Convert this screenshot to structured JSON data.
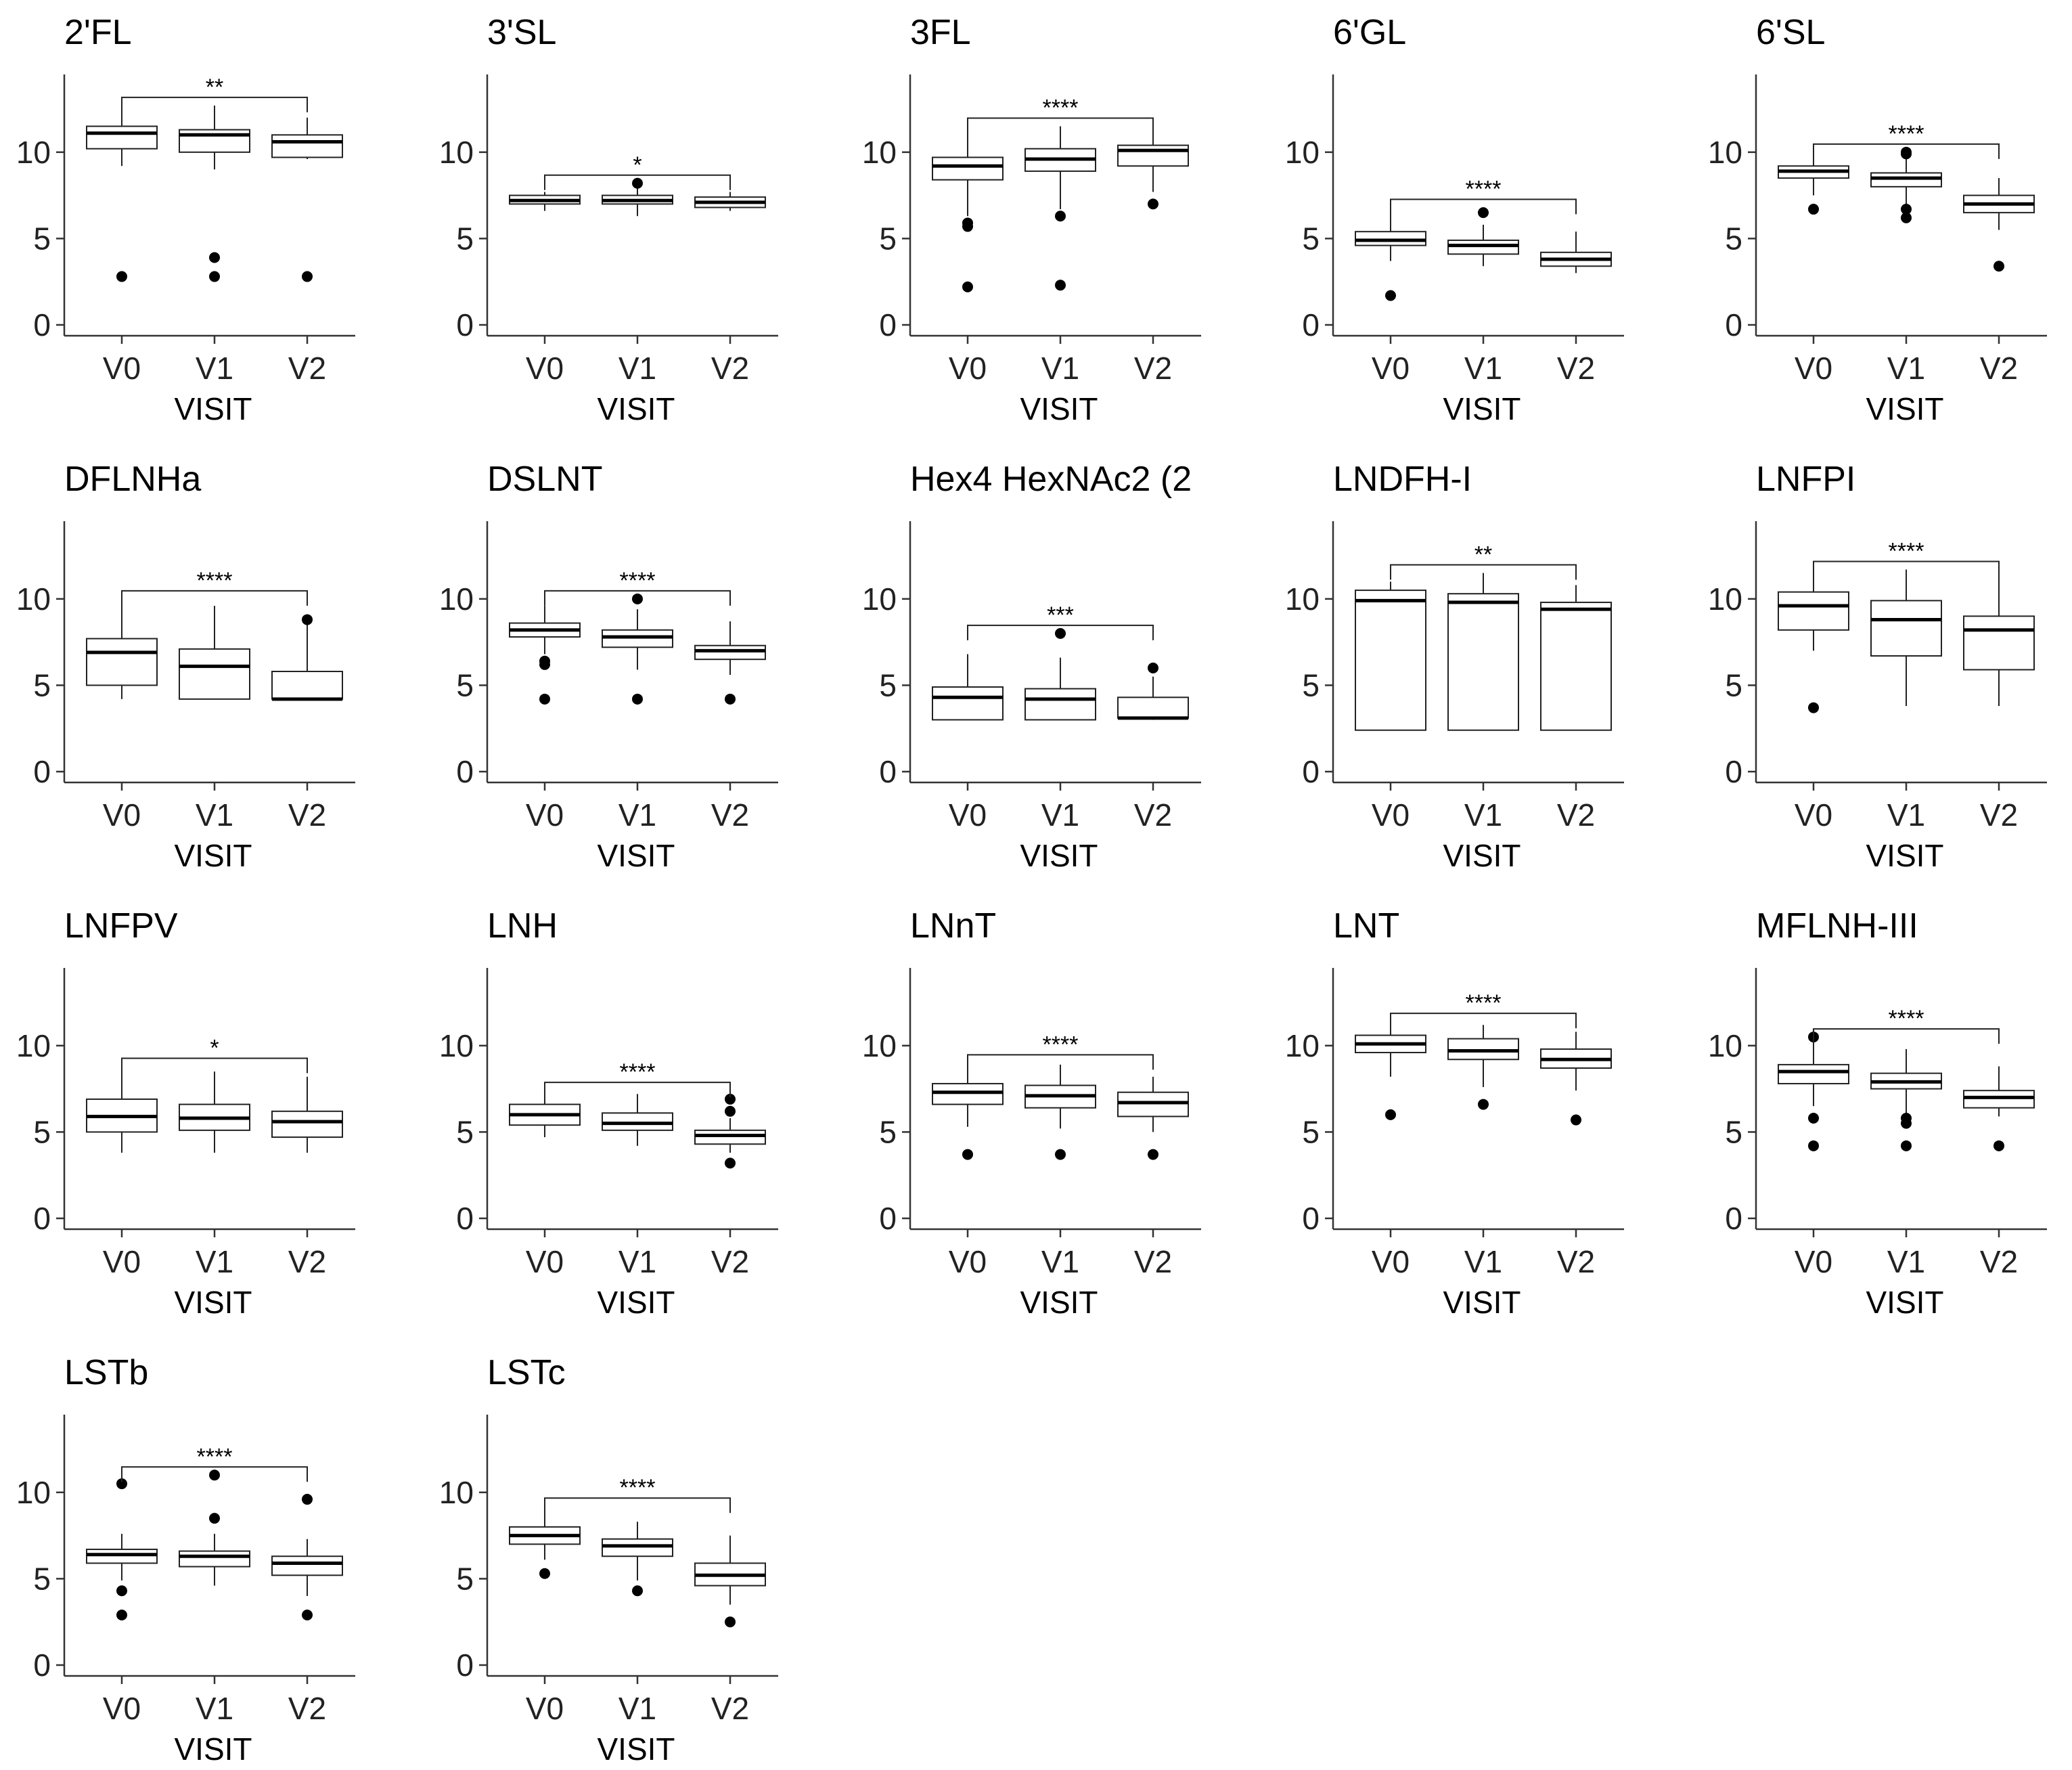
{
  "chart_data": {
    "type": "boxplot",
    "xlabel": "VISIT",
    "categories": [
      "V0",
      "V1",
      "V2"
    ],
    "ylim": [
      0,
      14.5
    ],
    "yticks": [
      0,
      5,
      10
    ],
    "grid": false,
    "legend": "none",
    "panels": [
      {
        "title": "2'FL",
        "sig": "**",
        "boxes": [
          {
            "min": 9.2,
            "q1": 10.2,
            "med": 11.1,
            "q3": 11.5,
            "max": 12.5,
            "outliers": [
              2.8
            ]
          },
          {
            "min": 9.0,
            "q1": 10.0,
            "med": 11.0,
            "q3": 11.3,
            "max": 12.7,
            "outliers": [
              2.8,
              3.9
            ]
          },
          {
            "min": 9.6,
            "q1": 9.7,
            "med": 10.6,
            "q3": 11.0,
            "max": 12.0,
            "outliers": [
              2.8
            ]
          }
        ]
      },
      {
        "title": "3'SL",
        "sig": "*",
        "boxes": [
          {
            "min": 6.6,
            "q1": 7.0,
            "med": 7.2,
            "q3": 7.5,
            "max": 7.7,
            "outliers": []
          },
          {
            "min": 6.3,
            "q1": 7.0,
            "med": 7.2,
            "q3": 7.5,
            "max": 8.0,
            "outliers": [
              8.2
            ]
          },
          {
            "min": 6.6,
            "q1": 6.8,
            "med": 7.1,
            "q3": 7.4,
            "max": 7.7,
            "outliers": []
          }
        ]
      },
      {
        "title": "3FL",
        "sig": "****",
        "boxes": [
          {
            "min": 6.3,
            "q1": 8.4,
            "med": 9.2,
            "q3": 9.7,
            "max": 11.2,
            "outliers": [
              2.2,
              5.7,
              5.9
            ]
          },
          {
            "min": 6.7,
            "q1": 8.9,
            "med": 9.6,
            "q3": 10.2,
            "max": 11.5,
            "outliers": [
              2.3,
              6.3
            ]
          },
          {
            "min": 7.7,
            "q1": 9.2,
            "med": 10.1,
            "q3": 10.4,
            "max": 11.4,
            "outliers": [
              7.0
            ]
          }
        ]
      },
      {
        "title": "6'GL",
        "sig": "****",
        "boxes": [
          {
            "min": 3.7,
            "q1": 4.6,
            "med": 4.9,
            "q3": 5.4,
            "max": 6.8,
            "outliers": [
              1.7
            ]
          },
          {
            "min": 3.4,
            "q1": 4.1,
            "med": 4.6,
            "q3": 4.9,
            "max": 5.8,
            "outliers": [
              6.5
            ]
          },
          {
            "min": 3.0,
            "q1": 3.4,
            "med": 3.8,
            "q3": 4.2,
            "max": 5.4,
            "outliers": []
          }
        ]
      },
      {
        "title": "6'SL",
        "sig": "****",
        "boxes": [
          {
            "min": 7.5,
            "q1": 8.5,
            "med": 8.9,
            "q3": 9.2,
            "max": 10.0,
            "outliers": [
              6.7
            ]
          },
          {
            "min": 7.0,
            "q1": 8.0,
            "med": 8.5,
            "q3": 8.8,
            "max": 9.7,
            "outliers": [
              6.2,
              6.7,
              9.9,
              10.0
            ]
          },
          {
            "min": 5.5,
            "q1": 6.5,
            "med": 7.0,
            "q3": 7.5,
            "max": 8.5,
            "outliers": [
              3.4
            ]
          }
        ]
      },
      {
        "title": "DFLNHa",
        "sig": "****",
        "boxes": [
          {
            "min": 4.2,
            "q1": 5.0,
            "med": 6.9,
            "q3": 7.7,
            "max": 10.0,
            "outliers": []
          },
          {
            "min": 4.2,
            "q1": 4.2,
            "med": 6.1,
            "q3": 7.1,
            "max": 9.6,
            "outliers": []
          },
          {
            "min": 4.2,
            "q1": 4.2,
            "med": 4.2,
            "q3": 5.8,
            "max": 8.6,
            "outliers": [
              8.8
            ]
          }
        ]
      },
      {
        "title": "DSLNT",
        "sig": "****",
        "boxes": [
          {
            "min": 6.8,
            "q1": 7.8,
            "med": 8.2,
            "q3": 8.6,
            "max": 9.6,
            "outliers": [
              4.2,
              6.2,
              6.4
            ]
          },
          {
            "min": 5.9,
            "q1": 7.2,
            "med": 7.8,
            "q3": 8.2,
            "max": 9.4,
            "outliers": [
              4.2,
              10.0
            ]
          },
          {
            "min": 5.6,
            "q1": 6.5,
            "med": 7.0,
            "q3": 7.3,
            "max": 8.7,
            "outliers": [
              4.2
            ]
          }
        ]
      },
      {
        "title": "Hex4 HexNAc2 (2",
        "sig": "***",
        "boxes": [
          {
            "min": 3.0,
            "q1": 3.0,
            "med": 4.3,
            "q3": 4.9,
            "max": 6.8,
            "outliers": []
          },
          {
            "min": 3.0,
            "q1": 3.0,
            "med": 4.2,
            "q3": 4.8,
            "max": 6.6,
            "outliers": [
              8.0
            ]
          },
          {
            "min": 3.0,
            "q1": 3.1,
            "med": 3.1,
            "q3": 4.3,
            "max": 5.5,
            "outliers": [
              6.0
            ]
          }
        ]
      },
      {
        "title": "LNDFH-I",
        "sig": "**",
        "boxes": [
          {
            "min": 2.4,
            "q1": 2.4,
            "med": 9.9,
            "q3": 10.5,
            "max": 11.0,
            "outliers": []
          },
          {
            "min": 2.4,
            "q1": 2.4,
            "med": 9.8,
            "q3": 10.3,
            "max": 11.5,
            "outliers": []
          },
          {
            "min": 2.4,
            "q1": 2.4,
            "med": 9.4,
            "q3": 9.8,
            "max": 10.8,
            "outliers": []
          }
        ]
      },
      {
        "title": "LNFPI",
        "sig": "****",
        "boxes": [
          {
            "min": 7.0,
            "q1": 8.2,
            "med": 9.6,
            "q3": 10.4,
            "max": 11.7,
            "outliers": [
              3.7
            ]
          },
          {
            "min": 3.8,
            "q1": 6.7,
            "med": 8.8,
            "q3": 9.9,
            "max": 11.7,
            "outliers": []
          },
          {
            "min": 3.8,
            "q1": 5.9,
            "med": 8.2,
            "q3": 9.0,
            "max": 11.4,
            "outliers": []
          }
        ]
      },
      {
        "title": "LNFPV",
        "sig": "*",
        "boxes": [
          {
            "min": 3.8,
            "q1": 5.0,
            "med": 5.9,
            "q3": 6.9,
            "max": 8.8,
            "outliers": []
          },
          {
            "min": 3.8,
            "q1": 5.1,
            "med": 5.8,
            "q3": 6.6,
            "max": 8.5,
            "outliers": []
          },
          {
            "min": 3.8,
            "q1": 4.7,
            "med": 5.6,
            "q3": 6.2,
            "max": 8.2,
            "outliers": []
          }
        ]
      },
      {
        "title": "LNH",
        "sig": "****",
        "boxes": [
          {
            "min": 4.7,
            "q1": 5.4,
            "med": 6.0,
            "q3": 6.6,
            "max": 7.4,
            "outliers": []
          },
          {
            "min": 4.2,
            "q1": 5.1,
            "med": 5.5,
            "q3": 6.1,
            "max": 7.2,
            "outliers": []
          },
          {
            "min": 3.8,
            "q1": 4.3,
            "med": 4.8,
            "q3": 5.1,
            "max": 5.8,
            "outliers": [
              3.2,
              6.2,
              6.9
            ]
          }
        ]
      },
      {
        "title": "LNnT",
        "sig": "****",
        "boxes": [
          {
            "min": 5.3,
            "q1": 6.6,
            "med": 7.3,
            "q3": 7.8,
            "max": 9.0,
            "outliers": [
              3.7
            ]
          },
          {
            "min": 5.2,
            "q1": 6.4,
            "med": 7.1,
            "q3": 7.7,
            "max": 8.9,
            "outliers": [
              3.7
            ]
          },
          {
            "min": 5.0,
            "q1": 5.9,
            "med": 6.7,
            "q3": 7.3,
            "max": 8.2,
            "outliers": [
              3.7
            ]
          }
        ]
      },
      {
        "title": "LNT",
        "sig": "****",
        "boxes": [
          {
            "min": 8.2,
            "q1": 9.6,
            "med": 10.1,
            "q3": 10.6,
            "max": 11.4,
            "outliers": [
              6.0
            ]
          },
          {
            "min": 7.6,
            "q1": 9.2,
            "med": 9.7,
            "q3": 10.4,
            "max": 11.2,
            "outliers": [
              6.6
            ]
          },
          {
            "min": 7.4,
            "q1": 8.7,
            "med": 9.2,
            "q3": 9.8,
            "max": 10.8,
            "outliers": [
              5.7
            ]
          }
        ]
      },
      {
        "title": "MFLNH-III",
        "sig": "****",
        "boxes": [
          {
            "min": 6.5,
            "q1": 7.8,
            "med": 8.5,
            "q3": 8.9,
            "max": 10.2,
            "outliers": [
              4.2,
              5.8,
              10.5
            ]
          },
          {
            "min": 6.0,
            "q1": 7.5,
            "med": 7.9,
            "q3": 8.4,
            "max": 9.8,
            "outliers": [
              4.2,
              5.5,
              5.8
            ]
          },
          {
            "min": 5.9,
            "q1": 6.4,
            "med": 7.0,
            "q3": 7.4,
            "max": 8.8,
            "outliers": [
              4.2
            ]
          }
        ]
      },
      {
        "title": "LSTb",
        "sig": "****",
        "boxes": [
          {
            "min": 4.9,
            "q1": 5.9,
            "med": 6.4,
            "q3": 6.7,
            "max": 7.6,
            "outliers": [
              2.9,
              4.3,
              10.5
            ]
          },
          {
            "min": 4.6,
            "q1": 5.7,
            "med": 6.3,
            "q3": 6.6,
            "max": 7.6,
            "outliers": [
              8.5,
              11.0
            ]
          },
          {
            "min": 4.0,
            "q1": 5.2,
            "med": 5.9,
            "q3": 6.3,
            "max": 7.3,
            "outliers": [
              2.9,
              9.6
            ]
          }
        ]
      },
      {
        "title": "LSTc",
        "sig": "****",
        "boxes": [
          {
            "min": 6.1,
            "q1": 7.0,
            "med": 7.5,
            "q3": 8.0,
            "max": 9.2,
            "outliers": [
              5.3
            ]
          },
          {
            "min": 4.9,
            "q1": 6.3,
            "med": 6.9,
            "q3": 7.3,
            "max": 8.3,
            "outliers": [
              4.3
            ]
          },
          {
            "min": 3.5,
            "q1": 4.6,
            "med": 5.2,
            "q3": 5.9,
            "max": 7.5,
            "outliers": [
              2.5
            ]
          }
        ]
      }
    ]
  }
}
